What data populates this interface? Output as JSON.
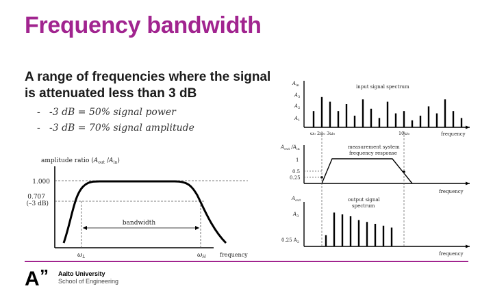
{
  "slide": {
    "title": "Frequency bandwidth",
    "lead": "A range of frequencies where the signal is attenuated less than 3 dB",
    "bullets": [
      "-3 dB = 50% signal power",
      "-3 dB = 70% signal amplitude"
    ],
    "bullet_marker": "-"
  },
  "left_figure": {
    "ylabel": "amplitude ratio (Aₒᵤₜ / Aᵢₙ)",
    "ylabel_parts": {
      "base": "amplitude ratio (",
      "a1": "A",
      "s1": "out",
      "slash": " /",
      "a2": "A",
      "s2": "in",
      "close": ")"
    },
    "y_ticks": [
      "1.000",
      "0.707",
      "(–3 dB)"
    ],
    "bandwidth_label": "bandwidth",
    "x_ticks": {
      "low": "ω",
      "low_sub": "L",
      "high": "ω",
      "high_sub": "H"
    },
    "xlabel": "frequency"
  },
  "right_figure": {
    "top": {
      "title": "input signal spectrum",
      "y_ticks": [
        "Aᵢₙ",
        "A₃",
        "A₂",
        "A₁"
      ],
      "y_tick_parts": [
        [
          "A",
          "in"
        ],
        [
          "A",
          "3"
        ],
        [
          "A",
          "2"
        ],
        [
          "A",
          "1"
        ]
      ],
      "x_ticks": [
        "ω₀ 2ω₀ 3ω₀",
        "10ω₀"
      ],
      "xlabel": "frequency",
      "bar_amplitudes": [
        0.35,
        0.65,
        0.55,
        0.35,
        0.5,
        0.25,
        0.6,
        0.4,
        0.2,
        0.55,
        0.3,
        0.35,
        0.15,
        0.25,
        0.45,
        0.3,
        0.6,
        0.35,
        0.2
      ]
    },
    "middle": {
      "ylabel": "Aₒᵤₜ /Aᵢₙ",
      "ylabel_parts": [
        "A",
        "out",
        " /A",
        "in"
      ],
      "title_lines": [
        "measurement system",
        "frequency response"
      ],
      "y_ticks": [
        "1",
        "0.5",
        "0.25"
      ],
      "xlabel": "frequency"
    },
    "bottom": {
      "ylabel": "Aₒᵤₜ",
      "ylabel_parts": [
        "A",
        "out"
      ],
      "title_lines": [
        "output signal",
        "spectrum"
      ],
      "y_ticks": [
        "A₃",
        "0.25 A₂"
      ],
      "y_tick_parts": [
        [
          "A",
          "3"
        ],
        [
          "0.25 A",
          "2"
        ]
      ],
      "xlabel": "frequency",
      "bar_amplitudes": [
        0.3,
        0.9,
        0.85,
        0.8,
        0.7,
        0.65,
        0.6,
        0.55,
        0.5
      ]
    }
  },
  "footer": {
    "logo_letter": "A",
    "logo_mark": "”",
    "university": "Aalto University",
    "school": "School of Engineering"
  },
  "colors": {
    "accent": "#a1248f",
    "text": "#1a1a1a"
  }
}
